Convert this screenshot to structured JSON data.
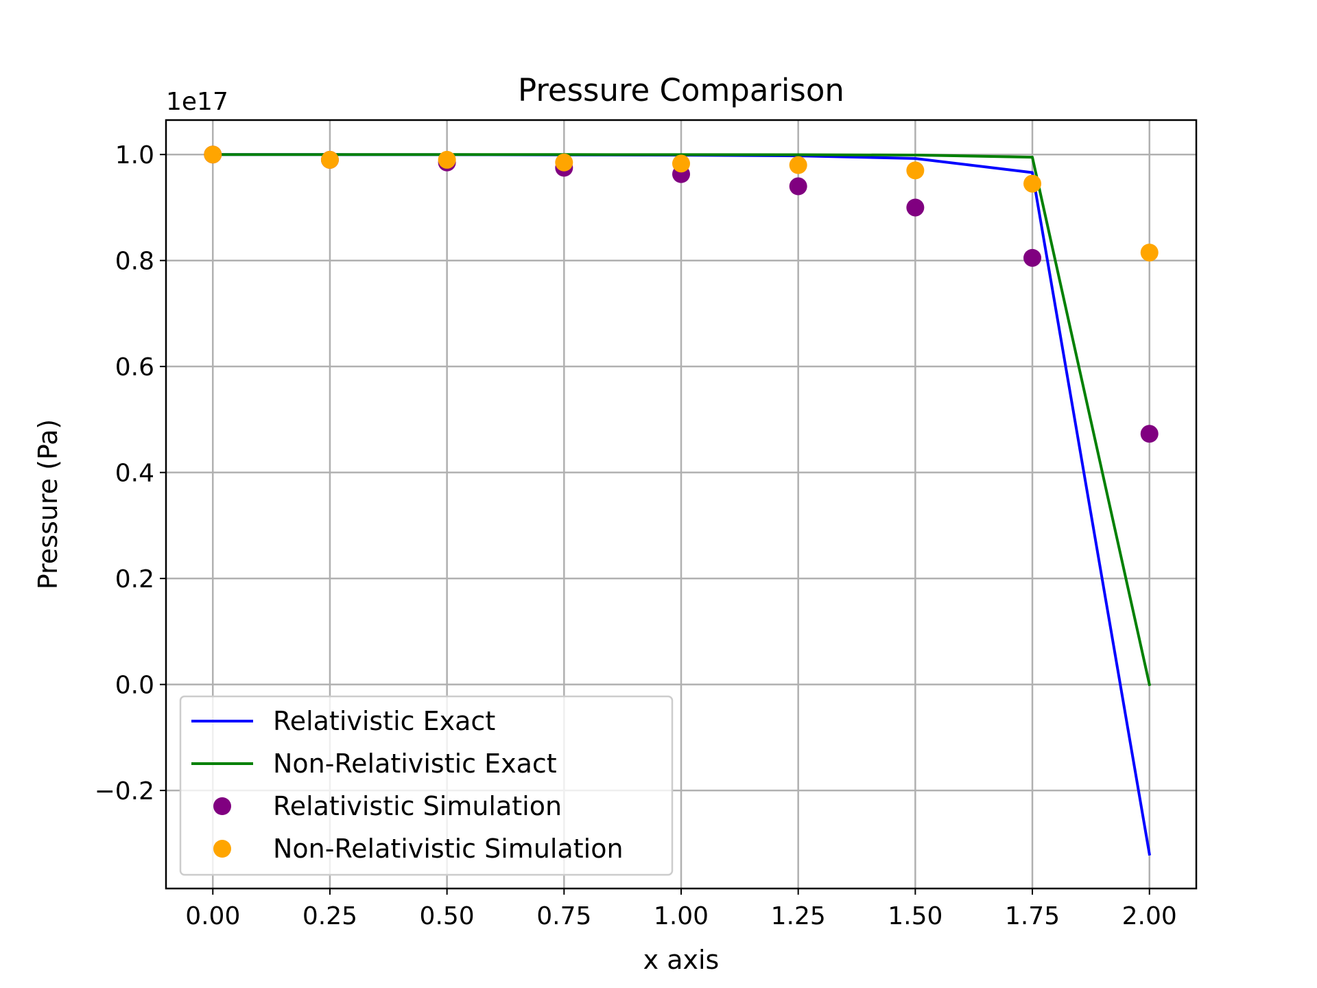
{
  "chart_data": {
    "type": "line",
    "title": "Pressure Comparison",
    "xlabel": "x axis",
    "ylabel": "Pressure (Pa)",
    "y_offset_label": "1e17",
    "xlim": [
      -0.1,
      2.1
    ],
    "ylim": [
      -0.385,
      1.065
    ],
    "x_ticks": [
      0.0,
      0.25,
      0.5,
      0.75,
      1.0,
      1.25,
      1.5,
      1.75,
      2.0
    ],
    "x_tick_labels": [
      "0.00",
      "0.25",
      "0.50",
      "0.75",
      "1.00",
      "1.25",
      "1.50",
      "1.75",
      "2.00"
    ],
    "y_ticks": [
      -0.2,
      0.0,
      0.2,
      0.4,
      0.6,
      0.8,
      1.0
    ],
    "y_tick_labels": [
      "−0.2",
      "0.0",
      "0.2",
      "0.4",
      "0.6",
      "0.8",
      "1.0"
    ],
    "grid": true,
    "legend_position": "lower-left",
    "x": [
      0.0,
      0.25,
      0.5,
      0.75,
      1.0,
      1.25,
      1.5,
      1.75,
      2.0
    ],
    "series": [
      {
        "name": "Relativistic Exact",
        "kind": "line",
        "color": "#0000ff",
        "values": [
          1.0,
          0.9999,
          0.9997,
          0.9994,
          0.9988,
          0.9975,
          0.9925,
          0.966,
          -0.32
        ]
      },
      {
        "name": "Non-Relativistic Exact",
        "kind": "line",
        "color": "#008000",
        "values": [
          1.0,
          1.0,
          1.0,
          0.9999,
          0.9998,
          0.9996,
          0.999,
          0.995,
          0.0
        ]
      },
      {
        "name": "Relativistic Simulation",
        "kind": "scatter",
        "color": "#800080",
        "values": [
          1.0,
          0.99,
          0.985,
          0.975,
          0.963,
          0.94,
          0.9,
          0.805,
          0.473
        ]
      },
      {
        "name": "Non-Relativistic Simulation",
        "kind": "scatter",
        "color": "#ffa500",
        "values": [
          1.0,
          0.99,
          0.99,
          0.985,
          0.983,
          0.98,
          0.97,
          0.945,
          0.815
        ]
      }
    ]
  }
}
